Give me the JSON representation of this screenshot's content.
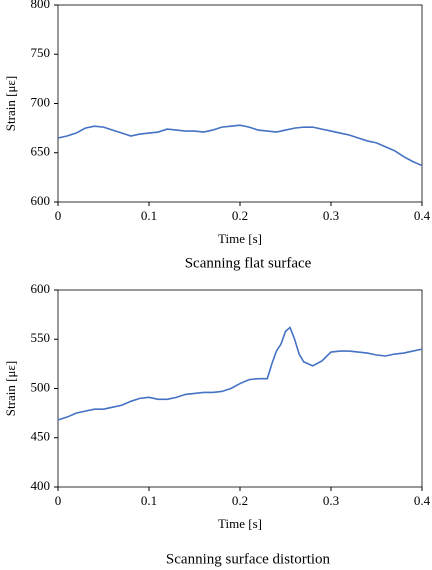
{
  "chart_data": [
    {
      "type": "line",
      "x_label": "Time [s]",
      "y_label": "Strain [με]",
      "caption": "Scanning flat surface",
      "xlim": [
        0,
        0.4
      ],
      "xticks": [
        0,
        0.1,
        0.2,
        0.3,
        0.4
      ],
      "ylim": [
        600,
        800
      ],
      "yticks": [
        600,
        650,
        700,
        750,
        800
      ],
      "series": [
        {
          "color": "#4472c4",
          "x": [
            0,
            0.01,
            0.02,
            0.03,
            0.04,
            0.05,
            0.06,
            0.07,
            0.08,
            0.09,
            0.1,
            0.11,
            0.12,
            0.13,
            0.14,
            0.15,
            0.16,
            0.17,
            0.18,
            0.19,
            0.2,
            0.21,
            0.22,
            0.23,
            0.24,
            0.25,
            0.26,
            0.27,
            0.28,
            0.29,
            0.3,
            0.31,
            0.32,
            0.33,
            0.34,
            0.35,
            0.36,
            0.37,
            0.38,
            0.39,
            0.4
          ],
          "values": [
            665,
            667,
            670,
            675,
            677,
            676,
            673,
            670,
            667,
            669,
            670,
            671,
            674,
            673,
            672,
            672,
            671,
            673,
            676,
            677,
            678,
            676,
            673,
            672,
            671,
            673,
            675,
            676,
            676,
            674,
            672,
            670,
            668,
            665,
            662,
            660,
            656,
            652,
            646,
            641,
            637
          ]
        }
      ]
    },
    {
      "type": "line",
      "x_label": "Time [s]",
      "y_label": "Strain [με]",
      "caption": "Scanning surface distortion",
      "xlim": [
        0,
        0.4
      ],
      "xticks": [
        0,
        0.1,
        0.2,
        0.3,
        0.4
      ],
      "ylim": [
        400,
        600
      ],
      "yticks": [
        400,
        450,
        500,
        550,
        600
      ],
      "series": [
        {
          "color": "#4472c4",
          "x": [
            0,
            0.01,
            0.02,
            0.03,
            0.04,
            0.05,
            0.06,
            0.07,
            0.08,
            0.09,
            0.1,
            0.11,
            0.12,
            0.13,
            0.14,
            0.15,
            0.16,
            0.17,
            0.18,
            0.19,
            0.2,
            0.21,
            0.22,
            0.23,
            0.235,
            0.24,
            0.245,
            0.25,
            0.255,
            0.26,
            0.265,
            0.27,
            0.28,
            0.29,
            0.3,
            0.31,
            0.32,
            0.33,
            0.34,
            0.35,
            0.36,
            0.37,
            0.38,
            0.39,
            0.4
          ],
          "values": [
            468,
            471,
            475,
            477,
            479,
            479,
            481,
            483,
            487,
            490,
            491,
            489,
            489,
            491,
            494,
            495,
            496,
            496,
            497,
            500,
            505,
            509,
            510,
            510,
            525,
            538,
            545,
            558,
            562,
            550,
            535,
            527,
            523,
            528,
            537,
            538,
            538,
            537,
            536,
            534,
            533,
            535,
            536,
            538,
            540
          ]
        }
      ]
    }
  ]
}
